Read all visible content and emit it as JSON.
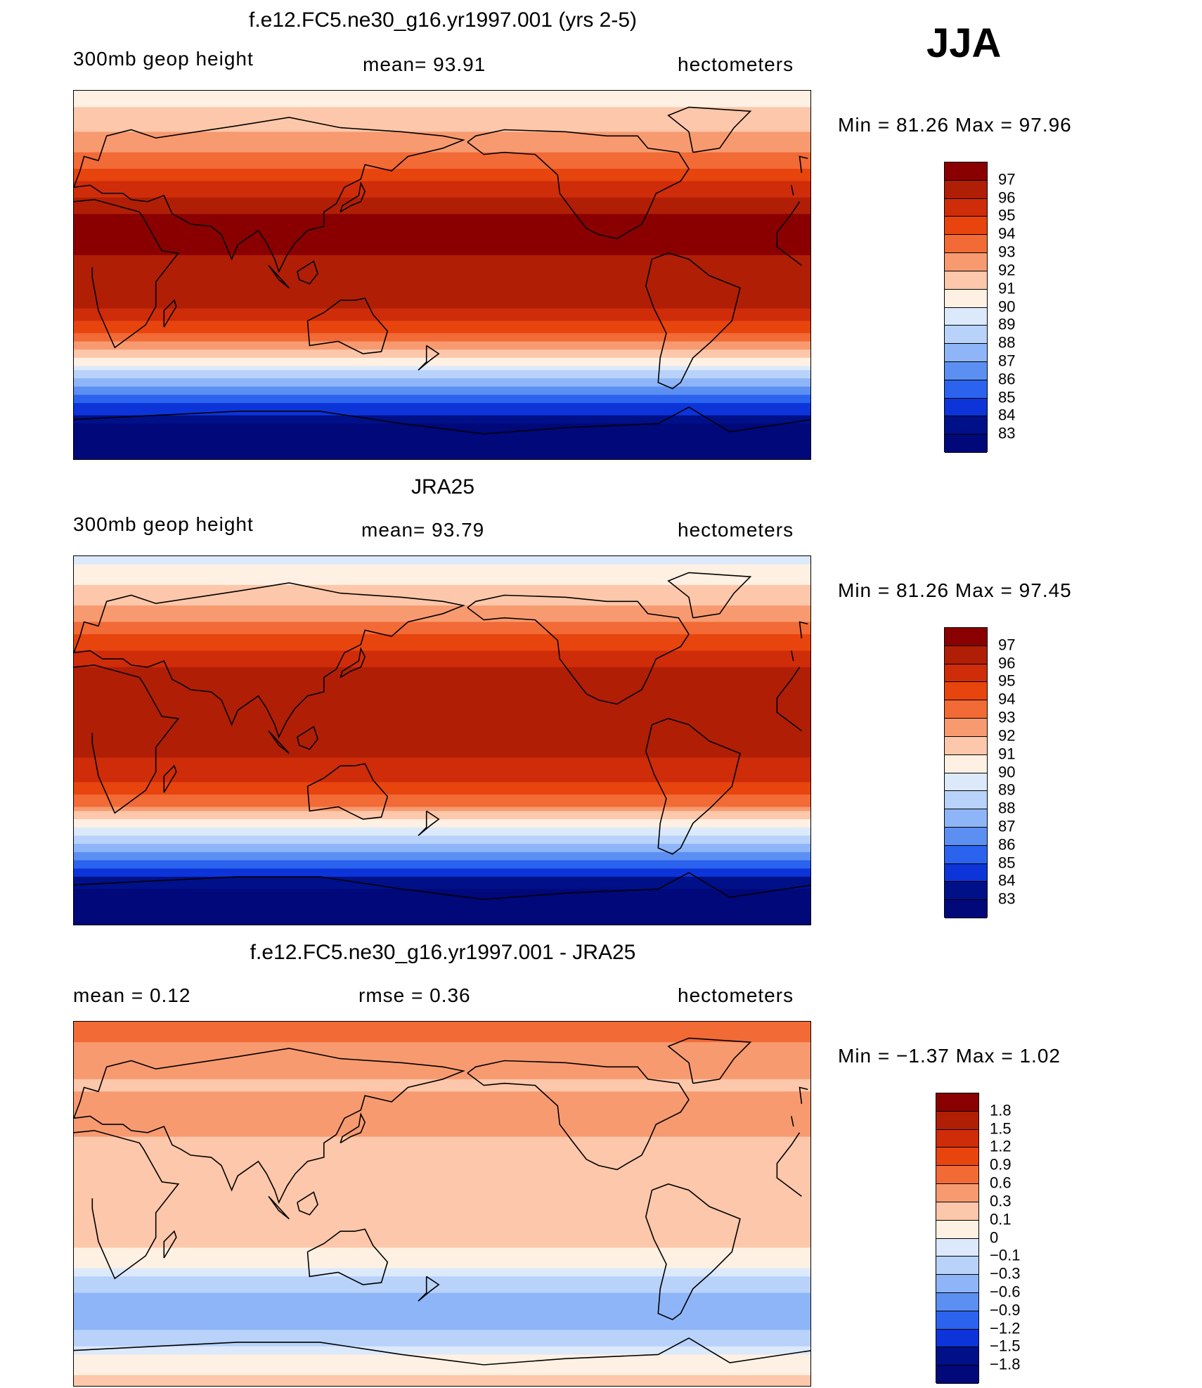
{
  "season_label": "JJA",
  "panels": [
    {
      "id": "model",
      "title": "f.e12.FC5.ne30_g16.yr1997.001 (yrs 2-5)",
      "left_text": "300mb  geop  height",
      "center_text": "mean=   93.91",
      "right_text": "hectometers",
      "minmax_text": "Min  =    81.26  Max  =    97.96"
    },
    {
      "id": "obs",
      "title": "JRA25",
      "left_text": "300mb  geop  height",
      "center_text": "mean=   93.79",
      "right_text": "hectometers",
      "minmax_text": "Min  =    81.26  Max  =    97.45"
    },
    {
      "id": "diff",
      "title": "f.e12.FC5.ne30_g16.yr1997.001 - JRA25",
      "left_text": "mean  =     0.12",
      "center_text": "rmse  =     0.36",
      "right_text": "hectometers",
      "minmax_text": "Min  =    −1.37  Max  =      1.02"
    }
  ],
  "chart_data": [
    {
      "type": "heatmap",
      "title": "f.e12.FC5.ne30_g16.yr1997.001 (yrs 2-5)",
      "variable": "300mb geop height",
      "units": "hectometers",
      "mean": 93.91,
      "min": 81.26,
      "max": 97.96,
      "colorbar_levels": [
        97,
        96,
        95,
        94,
        93,
        92,
        91,
        90,
        89,
        88,
        87,
        86,
        85,
        84,
        83
      ],
      "colorbar_colors": [
        "#8a0000",
        "#b01e06",
        "#cf2c0a",
        "#e8440e",
        "#f26a36",
        "#f79a70",
        "#fcc7aa",
        "#fef0e2",
        "#dbe9fb",
        "#b8d2fa",
        "#8eb5f7",
        "#5c8ff2",
        "#2b63ee",
        "#0c34d8",
        "#001088",
        "#00087a"
      ],
      "zonal_profile": [
        {
          "lat": 90,
          "value": 90.5
        },
        {
          "lat": 75,
          "value": 91.5
        },
        {
          "lat": 60,
          "value": 93.0
        },
        {
          "lat": 45,
          "value": 95.0
        },
        {
          "lat": 30,
          "value": 97.0
        },
        {
          "lat": 15,
          "value": 97.2
        },
        {
          "lat": 0,
          "value": 96.5
        },
        {
          "lat": -15,
          "value": 96.0
        },
        {
          "lat": -30,
          "value": 93.5
        },
        {
          "lat": -45,
          "value": 89.5
        },
        {
          "lat": -60,
          "value": 85.5
        },
        {
          "lat": -75,
          "value": 82.5
        },
        {
          "lat": -90,
          "value": 81.5
        }
      ]
    },
    {
      "type": "heatmap",
      "title": "JRA25",
      "variable": "300mb geop height",
      "units": "hectometers",
      "mean": 93.79,
      "min": 81.26,
      "max": 97.45,
      "colorbar_levels": [
        97,
        96,
        95,
        94,
        93,
        92,
        91,
        90,
        89,
        88,
        87,
        86,
        85,
        84,
        83
      ],
      "colorbar_colors": [
        "#8a0000",
        "#b01e06",
        "#cf2c0a",
        "#e8440e",
        "#f26a36",
        "#f79a70",
        "#fcc7aa",
        "#fef0e2",
        "#dbe9fb",
        "#b8d2fa",
        "#8eb5f7",
        "#5c8ff2",
        "#2b63ee",
        "#0c34d8",
        "#001088",
        "#00087a"
      ],
      "zonal_profile": [
        {
          "lat": 90,
          "value": 89.5
        },
        {
          "lat": 75,
          "value": 91.0
        },
        {
          "lat": 60,
          "value": 92.8
        },
        {
          "lat": 45,
          "value": 94.8
        },
        {
          "lat": 30,
          "value": 96.6
        },
        {
          "lat": 15,
          "value": 96.5
        },
        {
          "lat": 0,
          "value": 96.2
        },
        {
          "lat": -15,
          "value": 95.8
        },
        {
          "lat": -30,
          "value": 93.3
        },
        {
          "lat": -45,
          "value": 89.3
        },
        {
          "lat": -60,
          "value": 85.3
        },
        {
          "lat": -75,
          "value": 82.4
        },
        {
          "lat": -90,
          "value": 81.3
        }
      ]
    },
    {
      "type": "heatmap",
      "title": "f.e12.FC5.ne30_g16.yr1997.001 - JRA25",
      "units": "hectometers",
      "mean": 0.12,
      "rmse": 0.36,
      "min": -1.37,
      "max": 1.02,
      "colorbar_levels": [
        "1.8",
        "1.5",
        "1.2",
        "0.9",
        "0.6",
        "0.3",
        "0.1",
        "0",
        "−0.1",
        "−0.3",
        "−0.6",
        "−0.9",
        "−1.2",
        "−1.5",
        "−1.8"
      ],
      "colorbar_colors": [
        "#8a0000",
        "#b01e06",
        "#cf2c0a",
        "#e8440e",
        "#f26a36",
        "#f79a70",
        "#fcc7aa",
        "#fef0e2",
        "#dbe9fb",
        "#b8d2fa",
        "#8eb5f7",
        "#5c8ff2",
        "#2b63ee",
        "#0c34d8",
        "#001088",
        "#00087a"
      ],
      "zonal_profile": [
        {
          "lat": 90,
          "value": 0.7
        },
        {
          "lat": 75,
          "value": 0.55
        },
        {
          "lat": 60,
          "value": 0.25
        },
        {
          "lat": 45,
          "value": 0.4
        },
        {
          "lat": 30,
          "value": 0.25
        },
        {
          "lat": 15,
          "value": 0.2
        },
        {
          "lat": 0,
          "value": 0.2
        },
        {
          "lat": -15,
          "value": 0.15
        },
        {
          "lat": -30,
          "value": 0.0
        },
        {
          "lat": -45,
          "value": -0.35
        },
        {
          "lat": -60,
          "value": -0.3
        },
        {
          "lat": -75,
          "value": 0.05
        },
        {
          "lat": -90,
          "value": 0.15
        }
      ]
    }
  ]
}
